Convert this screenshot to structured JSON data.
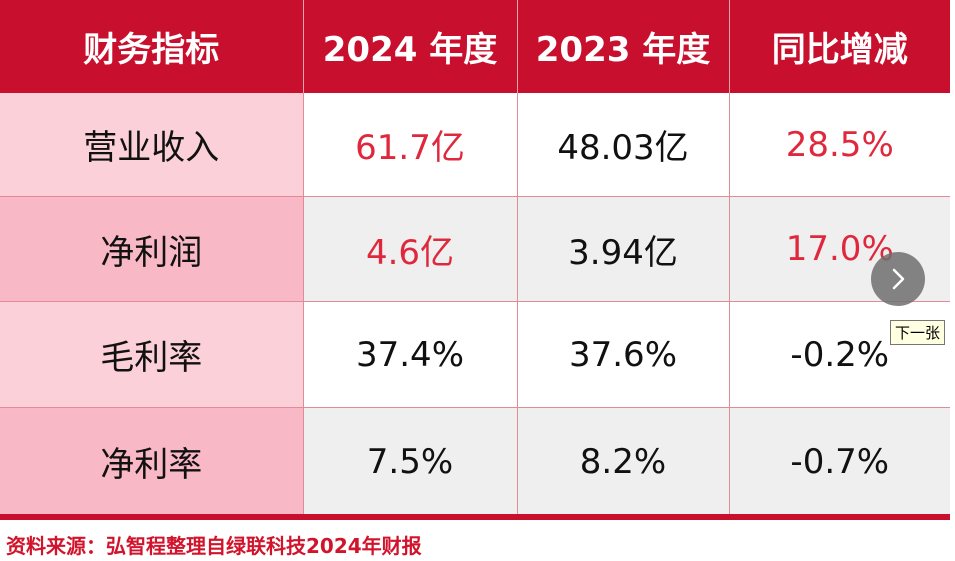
{
  "table": {
    "headers": [
      "财务指标",
      "2024 年度",
      "2023 年度",
      "同比增减"
    ],
    "rows": [
      {
        "label": "营业收入",
        "v2024": "61.7亿",
        "v2023": "48.03亿",
        "change": "28.5%"
      },
      {
        "label": "净利润",
        "v2024": "4.6亿",
        "v2023": "3.94亿",
        "change": "17.0%"
      },
      {
        "label": "毛利率",
        "v2024": "37.4%",
        "v2023": "37.6%",
        "change": "-0.2%"
      },
      {
        "label": "净利率",
        "v2024": "7.5%",
        "v2023": "8.2%",
        "change": "-0.7%"
      }
    ]
  },
  "source": "资料来源：弘智程整理自绿联科技2024年财报",
  "next_tooltip": "下一张",
  "colors": {
    "header_bg": "#c8102e",
    "highlight_text": "#e0283d",
    "label_bg_light": "#fbd0d8",
    "label_bg_dark": "#f9b8c5",
    "row_grey": "#efefef"
  }
}
